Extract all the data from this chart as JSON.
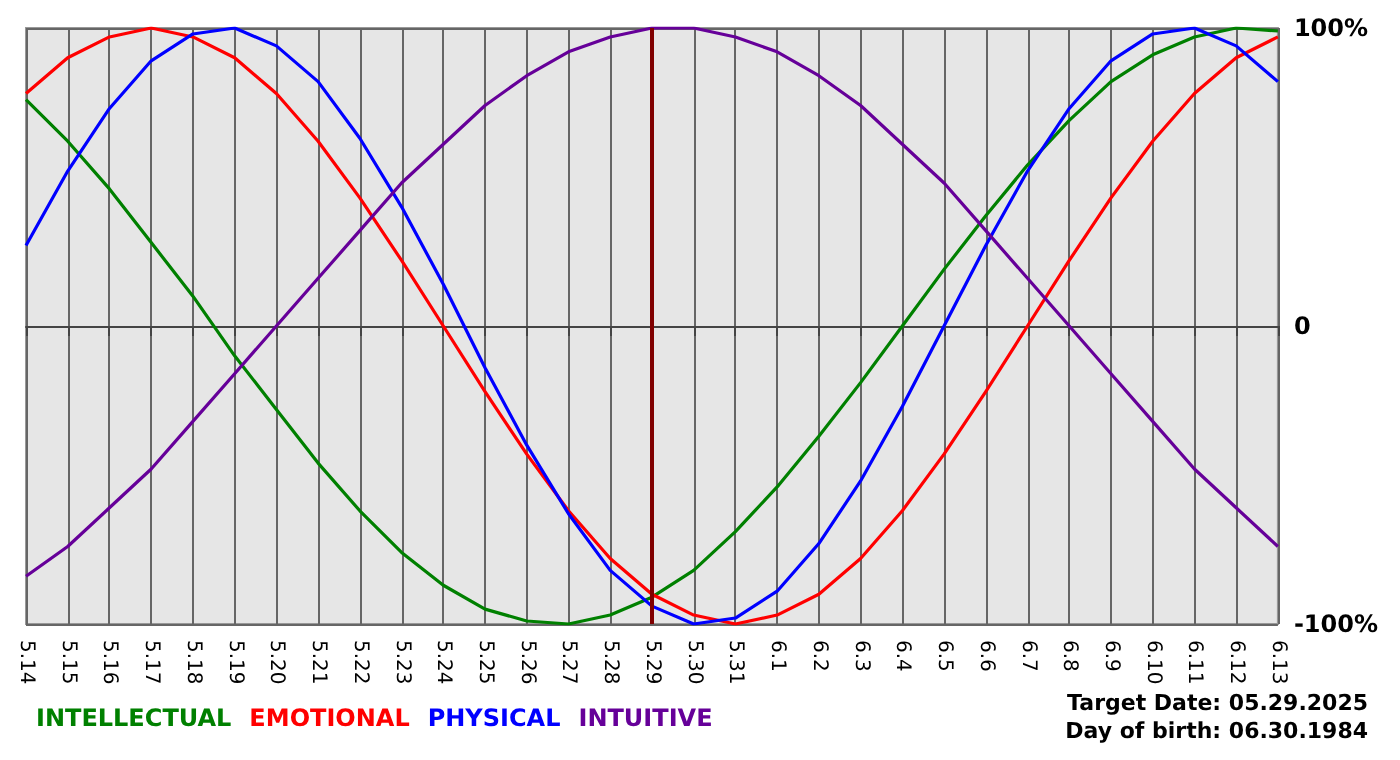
{
  "chart_data": {
    "type": "line",
    "categories": [
      "5.14",
      "5.15",
      "5.16",
      "5.17",
      "5.18",
      "5.19",
      "5.20",
      "5.21",
      "5.22",
      "5.23",
      "5.24",
      "5.25",
      "5.26",
      "5.27",
      "5.28",
      "5.29",
      "5.30",
      "5.31",
      "6.1",
      "6.2",
      "6.3",
      "6.4",
      "6.5",
      "6.6",
      "6.7",
      "6.8",
      "6.9",
      "6.10",
      "6.11",
      "6.12",
      "6.13"
    ],
    "series": [
      {
        "name": "INTELLECTUAL",
        "color": "#008000",
        "values": [
          76,
          62,
          46,
          28,
          10,
          -10,
          -28,
          -46,
          -62,
          -76,
          -87,
          -95,
          -99,
          -100,
          -97,
          -91,
          -82,
          -69,
          -54,
          -37,
          -19,
          0,
          19,
          37,
          54,
          69,
          82,
          91,
          97,
          100,
          99
        ]
      },
      {
        "name": "EMOTIONAL",
        "color": "#ff0000",
        "values": [
          78,
          90,
          97,
          100,
          97,
          90,
          78,
          62,
          43,
          22,
          0,
          -22,
          -43,
          -62,
          -78,
          -90,
          -97,
          -100,
          -97,
          -90,
          -78,
          -62,
          -43,
          -22,
          0,
          22,
          43,
          62,
          78,
          90,
          97
        ]
      },
      {
        "name": "PHYSICAL",
        "color": "#0000ff",
        "values": [
          27,
          52,
          73,
          89,
          98,
          100,
          94,
          82,
          63,
          40,
          14,
          -14,
          -40,
          -63,
          -82,
          -94,
          -100,
          -98,
          -89,
          -73,
          -52,
          -27,
          0,
          27,
          52,
          73,
          89,
          98,
          100,
          94,
          82
        ]
      },
      {
        "name": "INTUITIVE",
        "color": "#660099",
        "values": [
          -84,
          -74,
          -61,
          -48,
          -32,
          -16,
          0,
          16,
          32,
          48,
          61,
          74,
          84,
          92,
          97,
          100,
          100,
          97,
          92,
          84,
          74,
          61,
          48,
          32,
          16,
          0,
          -16,
          -32,
          -48,
          -61,
          -74
        ]
      }
    ],
    "ylim": [
      -100,
      100
    ],
    "yticks": [
      {
        "value": -100,
        "label": "-100%"
      },
      0,
      {
        "value": 100,
        "label": "100%"
      }
    ],
    "grid": true,
    "legend": "bottom left",
    "marker": "none",
    "ref_lines": [
      {
        "axis": "x",
        "value": "5.29",
        "color": "#800000"
      }
    ],
    "annotations": [
      "Target Date: 05.29.2025",
      "Day of birth: 06.30.1984"
    ]
  }
}
